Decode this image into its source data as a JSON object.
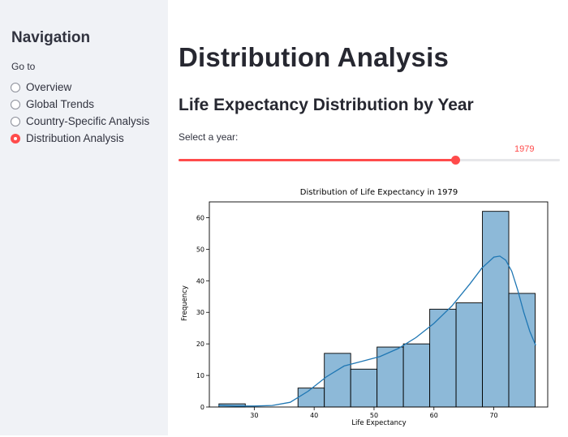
{
  "sidebar": {
    "title": "Navigation",
    "goto_label": "Go to",
    "options": [
      {
        "label": "Overview",
        "selected": false
      },
      {
        "label": "Global Trends",
        "selected": false
      },
      {
        "label": "Country-Specific Analysis",
        "selected": false
      },
      {
        "label": "Distribution Analysis",
        "selected": true
      }
    ]
  },
  "main": {
    "title": "Distribution Analysis",
    "subtitle": "Life Expectancy Distribution by Year",
    "slider": {
      "label": "Select a year:",
      "value": "1979",
      "min": 1950,
      "max": 1990,
      "current": 1979
    }
  },
  "colors": {
    "accent": "#ff4b4b",
    "bar": "#8db9d8",
    "kde": "#1f77b4"
  },
  "chart_data": {
    "type": "bar",
    "title": "Distribution of Life Expectancy in 1979",
    "xlabel": "Life Expectancy",
    "ylabel": "Frequency",
    "xlim": [
      22.5,
      79
    ],
    "ylim": [
      0,
      65
    ],
    "xticks": [
      30,
      40,
      50,
      60,
      70
    ],
    "yticks": [
      0,
      10,
      20,
      30,
      40,
      50,
      60
    ],
    "bins": [
      {
        "start": 24.1,
        "end": 28.5,
        "count": 1
      },
      {
        "start": 28.5,
        "end": 32.9,
        "count": 0
      },
      {
        "start": 32.9,
        "end": 37.3,
        "count": 0
      },
      {
        "start": 37.3,
        "end": 41.7,
        "count": 6
      },
      {
        "start": 41.7,
        "end": 46.1,
        "count": 17
      },
      {
        "start": 46.1,
        "end": 50.5,
        "count": 12
      },
      {
        "start": 50.5,
        "end": 54.9,
        "count": 19
      },
      {
        "start": 54.9,
        "end": 59.3,
        "count": 20
      },
      {
        "start": 59.3,
        "end": 63.7,
        "count": 31
      },
      {
        "start": 63.7,
        "end": 68.1,
        "count": 33
      },
      {
        "start": 68.1,
        "end": 72.5,
        "count": 62
      },
      {
        "start": 72.5,
        "end": 76.9,
        "count": 36
      }
    ],
    "kde": {
      "x": [
        24,
        27,
        30,
        33,
        36,
        39,
        42,
        45,
        48,
        51,
        54,
        57,
        60,
        63,
        66,
        68,
        70,
        71,
        72,
        73,
        74,
        75,
        76,
        77
      ],
      "y": [
        0.5,
        0.3,
        0.3,
        0.5,
        1.5,
        5,
        9.5,
        13,
        14.5,
        16,
        18.5,
        22,
        26.5,
        32,
        39,
        44,
        47.5,
        47.8,
        46.5,
        43,
        37,
        30,
        24,
        19.5
      ]
    }
  }
}
